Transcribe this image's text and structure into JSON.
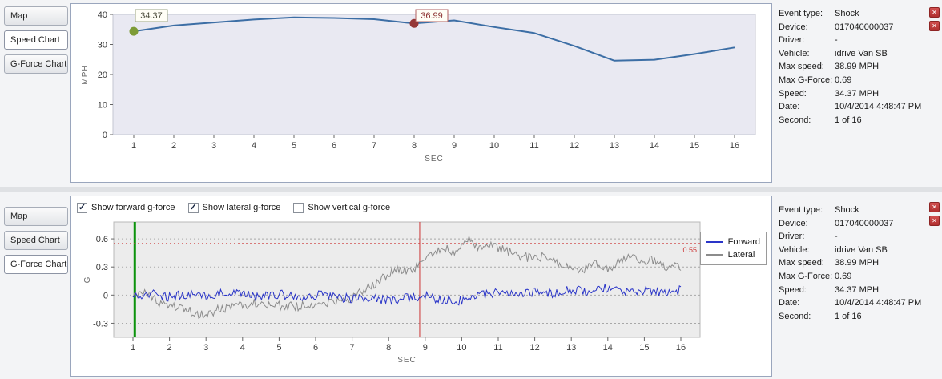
{
  "icons": {
    "close": "✕",
    "check": "✓"
  },
  "top_panel": {
    "tabs": [
      {
        "label": "Map",
        "active": false
      },
      {
        "label": "Speed Chart",
        "active": true
      },
      {
        "label": "G-Force Chart",
        "active": false
      }
    ]
  },
  "bottom_panel": {
    "tabs": [
      {
        "label": "Map",
        "active": false
      },
      {
        "label": "Speed Chart",
        "active": false
      },
      {
        "label": "G-Force Chart",
        "active": true
      }
    ],
    "checkboxes": [
      {
        "label": "Show forward g-force",
        "checked": true
      },
      {
        "label": "Show lateral g-force",
        "checked": true
      },
      {
        "label": "Show vertical g-force",
        "checked": false
      }
    ]
  },
  "info": {
    "rows": [
      {
        "label": "Event type:",
        "value": "Shock"
      },
      {
        "label": "Device:",
        "value": "017040000037"
      },
      {
        "label": "Driver:",
        "value": "-"
      },
      {
        "label": "Vehicle:",
        "value": "idrive Van SB"
      },
      {
        "label": "Max speed:",
        "value": "38.99 MPH"
      },
      {
        "label": "Max G-Force:",
        "value": "0.69"
      },
      {
        "label": "Speed:",
        "value": "34.37 MPH"
      },
      {
        "label": "Date:",
        "value": "10/4/2014 4:48:47 PM"
      },
      {
        "label": "Second:",
        "value": "1 of 16"
      }
    ]
  },
  "chart_data": [
    {
      "type": "line",
      "title": "Speed Chart",
      "xlabel": "SEC",
      "ylabel": "MPH",
      "ylim": [
        0,
        40
      ],
      "yticks": [
        0,
        10,
        20,
        30,
        40
      ],
      "x": [
        1,
        2,
        3,
        4,
        5,
        6,
        7,
        8,
        9,
        10,
        11,
        12,
        13,
        14,
        15,
        16
      ],
      "values": [
        34.37,
        36.3,
        37.3,
        38.3,
        38.99,
        38.8,
        38.4,
        36.99,
        38.0,
        35.8,
        33.8,
        29.5,
        24.6,
        24.9,
        26.8,
        29.0
      ],
      "line_color": "#3c6ea5",
      "plot_bg": "#e9e9f2",
      "grid": false,
      "markers": [
        {
          "x": 1,
          "y": 34.37,
          "label": "34.37",
          "color": "#7d9b36",
          "label_border": "#9aa383",
          "label_color": "#4a4a3a"
        },
        {
          "x": 8,
          "y": 36.99,
          "label": "36.99",
          "color": "#953737",
          "label_border": "#b26060",
          "label_color": "#8b3030"
        }
      ]
    },
    {
      "type": "line",
      "title": "G-Force Chart",
      "xlabel": "SEC",
      "ylabel": "G",
      "ylim": [
        -0.45,
        0.78
      ],
      "yticks": [
        -0.3,
        0,
        0.3,
        0.6
      ],
      "xticks": [
        1,
        2,
        3,
        4,
        5,
        6,
        7,
        8,
        9,
        10,
        11,
        12,
        13,
        14,
        15,
        16
      ],
      "plot_bg": "#ececec",
      "grid": true,
      "legend_position": "right",
      "threshold": {
        "value": 0.55,
        "label": "0.55",
        "color": "#cc3333"
      },
      "vlines": [
        {
          "x": 1.05,
          "color": "#0c930c",
          "width": 3,
          "name": "event-start-line"
        },
        {
          "x": 8.85,
          "color": "#cc3333",
          "width": 1,
          "name": "current-second-line"
        }
      ],
      "series": [
        {
          "name": "Forward",
          "color": "#2a35c8",
          "noise": 0.05,
          "trend": [
            [
              1,
              0
            ],
            [
              1.5,
              0.02
            ],
            [
              2,
              -0.02
            ],
            [
              2.5,
              0.01
            ],
            [
              3,
              -0.03
            ],
            [
              3.5,
              0.02
            ],
            [
              4,
              0
            ],
            [
              4.5,
              -0.02
            ],
            [
              5,
              0.01
            ],
            [
              5.5,
              -0.03
            ],
            [
              6,
              0
            ],
            [
              6.5,
              -0.02
            ],
            [
              7,
              -0.04
            ],
            [
              7.5,
              -0.02
            ],
            [
              8,
              -0.06
            ],
            [
              8.5,
              -0.03
            ],
            [
              9,
              -0.01
            ],
            [
              9.5,
              -0.05
            ],
            [
              10,
              -0.06
            ],
            [
              10.5,
              0
            ],
            [
              11,
              0.03
            ],
            [
              11.5,
              0
            ],
            [
              12,
              0.04
            ],
            [
              12.5,
              0.02
            ],
            [
              13,
              0.06
            ],
            [
              13.5,
              0.03
            ],
            [
              14,
              0.08
            ],
            [
              14.5,
              0.04
            ],
            [
              15,
              0.05
            ],
            [
              15.5,
              0.03
            ],
            [
              16,
              0.05
            ]
          ]
        },
        {
          "name": "Lateral",
          "color": "#8c8c8c",
          "noise": 0.05,
          "trend": [
            [
              1,
              -0.02
            ],
            [
              1.3,
              0.04
            ],
            [
              1.7,
              -0.08
            ],
            [
              2,
              -0.1
            ],
            [
              2.4,
              -0.14
            ],
            [
              2.7,
              -0.19
            ],
            [
              3,
              -0.23
            ],
            [
              3.3,
              -0.16
            ],
            [
              3.7,
              -0.12
            ],
            [
              4,
              -0.1
            ],
            [
              4.5,
              -0.08
            ],
            [
              5,
              -0.11
            ],
            [
              5.5,
              -0.12
            ],
            [
              6,
              -0.1
            ],
            [
              6.5,
              -0.08
            ],
            [
              7,
              -0.03
            ],
            [
              7.3,
              0.04
            ],
            [
              7.6,
              0.12
            ],
            [
              8,
              0.22
            ],
            [
              8.3,
              0.28
            ],
            [
              8.6,
              0.24
            ],
            [
              8.9,
              0.34
            ],
            [
              9.2,
              0.44
            ],
            [
              9.5,
              0.5
            ],
            [
              9.8,
              0.46
            ],
            [
              10,
              0.54
            ],
            [
              10.2,
              0.62
            ],
            [
              10.45,
              0.5
            ],
            [
              10.7,
              0.56
            ],
            [
              11,
              0.5
            ],
            [
              11.3,
              0.46
            ],
            [
              11.6,
              0.42
            ],
            [
              12,
              0.38
            ],
            [
              12.3,
              0.42
            ],
            [
              12.6,
              0.35
            ],
            [
              13,
              0.3
            ],
            [
              13.3,
              0.27
            ],
            [
              13.6,
              0.34
            ],
            [
              14,
              0.27
            ],
            [
              14.3,
              0.37
            ],
            [
              14.6,
              0.42
            ],
            [
              15,
              0.35
            ],
            [
              15.3,
              0.38
            ],
            [
              15.6,
              0.31
            ],
            [
              16,
              0.3
            ]
          ]
        }
      ]
    }
  ]
}
